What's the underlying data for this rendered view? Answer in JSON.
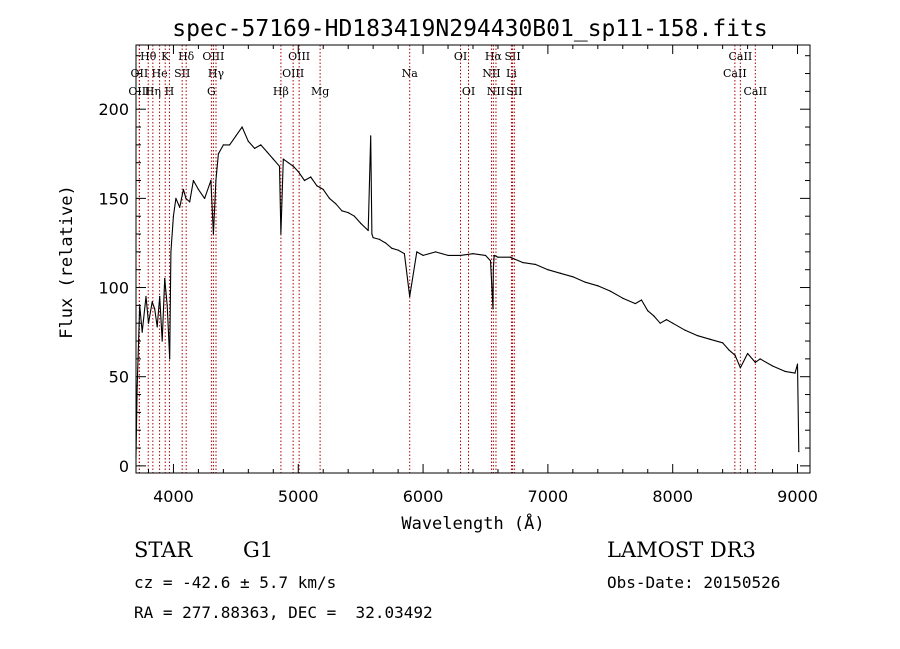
{
  "chart_data": {
    "type": "line",
    "title": "spec-57169-HD183419N294430B01_sp11-158.fits",
    "xlabel": "Wavelength (Å)",
    "ylabel": "Flux (relative)",
    "xlim": [
      3700,
      9100
    ],
    "ylim": [
      -4,
      236
    ],
    "xticks": [
      4000,
      5000,
      6000,
      7000,
      8000,
      9000
    ],
    "yticks": [
      0,
      50,
      100,
      150,
      200
    ],
    "xtick_labels": [
      "4000",
      "5000",
      "6000",
      "7000",
      "8000",
      "9000"
    ],
    "ytick_labels": [
      "0",
      "50",
      "100",
      "150",
      "200"
    ],
    "series": [
      {
        "name": "spectrum",
        "x": [
          3700,
          3710,
          3730,
          3750,
          3780,
          3800,
          3830,
          3850,
          3870,
          3890,
          3910,
          3930,
          3950,
          3970,
          3980,
          4000,
          4020,
          4050,
          4080,
          4100,
          4130,
          4160,
          4200,
          4250,
          4300,
          4320,
          4340,
          4360,
          4400,
          4450,
          4500,
          4550,
          4600,
          4650,
          4700,
          4750,
          4800,
          4850,
          4861,
          4880,
          4920,
          4960,
          5000,
          5050,
          5100,
          5150,
          5200,
          5250,
          5300,
          5350,
          5400,
          5450,
          5500,
          5560,
          5580,
          5590,
          5600,
          5650,
          5700,
          5750,
          5800,
          5850,
          5893,
          5950,
          6000,
          6100,
          6200,
          6300,
          6400,
          6500,
          6540,
          6560,
          6563,
          6570,
          6600,
          6700,
          6800,
          6900,
          7000,
          7100,
          7200,
          7300,
          7400,
          7500,
          7600,
          7700,
          7750,
          7800,
          7850,
          7900,
          7950,
          8000,
          8100,
          8200,
          8300,
          8400,
          8450,
          8500,
          8542,
          8600,
          8662,
          8700,
          8800,
          8900,
          8980,
          9000,
          9010
        ],
        "y": [
          5,
          45,
          90,
          75,
          95,
          80,
          92,
          88,
          78,
          95,
          70,
          105,
          90,
          60,
          120,
          140,
          150,
          145,
          155,
          150,
          148,
          160,
          155,
          150,
          160,
          130,
          160,
          175,
          180,
          180,
          185,
          190,
          182,
          178,
          180,
          176,
          172,
          168,
          130,
          172,
          170,
          168,
          165,
          160,
          162,
          157,
          155,
          150,
          147,
          143,
          142,
          140,
          136,
          132,
          185,
          130,
          128,
          127,
          125,
          122,
          121,
          119,
          95,
          120,
          118,
          120,
          118,
          118,
          119,
          118,
          115,
          88,
          110,
          118,
          117,
          117,
          114,
          113,
          110,
          108,
          106,
          103,
          101,
          98,
          94,
          91,
          93,
          87,
          84,
          80,
          82,
          80,
          76,
          73,
          71,
          69,
          65,
          62,
          55,
          63,
          58,
          60,
          56,
          53,
          52,
          57,
          8
        ]
      }
    ],
    "line_markers": [
      {
        "label": "OII",
        "wavelength": 3727,
        "row": 2
      },
      {
        "label": "OIII",
        "wavelength": 3727,
        "row": 3
      },
      {
        "label": "Hθ",
        "wavelength": 3798,
        "row": 1
      },
      {
        "label": "He",
        "wavelength": 3889,
        "row": 2
      },
      {
        "label": "Hη",
        "wavelength": 3835,
        "row": 3
      },
      {
        "label": "K",
        "wavelength": 3934,
        "row": 1
      },
      {
        "label": "H",
        "wavelength": 3968,
        "row": 3
      },
      {
        "label": "SII",
        "wavelength": 4070,
        "row": 2
      },
      {
        "label": "Hδ",
        "wavelength": 4102,
        "row": 1
      },
      {
        "label": "OIII",
        "wavelength": 4320,
        "row": 1
      },
      {
        "label": "Hγ",
        "wavelength": 4341,
        "row": 2
      },
      {
        "label": "G",
        "wavelength": 4304,
        "row": 3
      },
      {
        "label": "Hβ",
        "wavelength": 4861,
        "row": 3
      },
      {
        "label": "OIII",
        "wavelength": 5007,
        "row": 1
      },
      {
        "label": "OIII",
        "wavelength": 4959,
        "row": 2
      },
      {
        "label": "Mg",
        "wavelength": 5175,
        "row": 3
      },
      {
        "label": "Na",
        "wavelength": 5893,
        "row": 2
      },
      {
        "label": "OI",
        "wavelength": 6300,
        "row": 1
      },
      {
        "label": "OI",
        "wavelength": 6364,
        "row": 3
      },
      {
        "label": "Hα",
        "wavelength": 6563,
        "row": 1
      },
      {
        "label": "NII",
        "wavelength": 6548,
        "row": 2
      },
      {
        "label": "NII",
        "wavelength": 6584,
        "row": 3
      },
      {
        "label": "SII",
        "wavelength": 6717,
        "row": 1
      },
      {
        "label": "Li",
        "wavelength": 6708,
        "row": 2
      },
      {
        "label": "SII",
        "wavelength": 6731,
        "row": 3
      },
      {
        "label": "CaII",
        "wavelength": 8542,
        "row": 1
      },
      {
        "label": "CaII",
        "wavelength": 8498,
        "row": 2
      },
      {
        "label": "CaII",
        "wavelength": 8662,
        "row": 3
      }
    ]
  },
  "info": {
    "object_type": "STAR",
    "subclass": "G1",
    "survey": "LAMOST DR3",
    "cz": "cz = -42.6 ± 5.7 km/s",
    "obs_date": "Obs-Date: 20150526",
    "radec": "RA = 277.88363, DEC =  32.03492"
  }
}
